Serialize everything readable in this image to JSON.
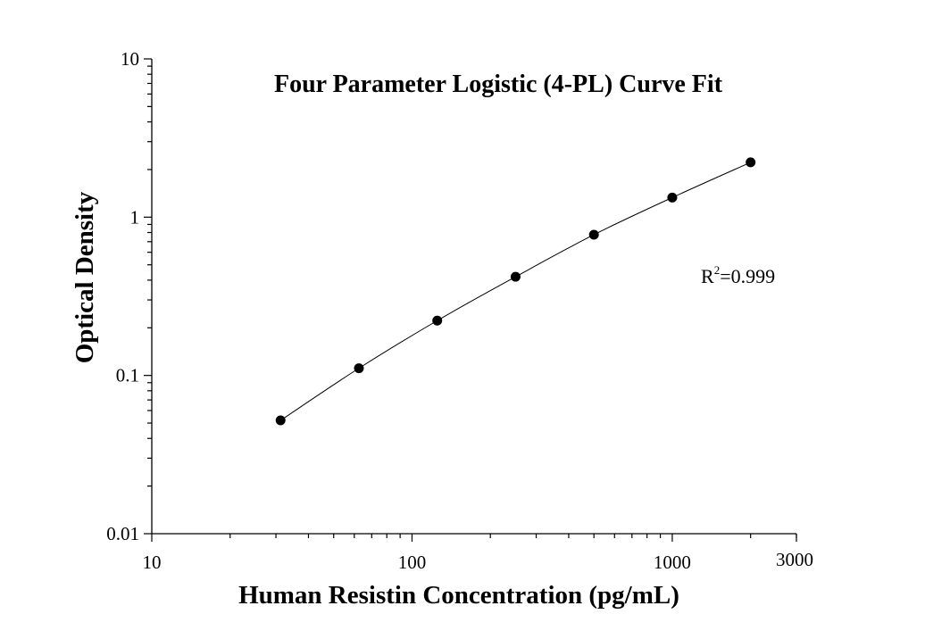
{
  "chart_data": {
    "type": "scatter",
    "title": "Four Parameter Logistic (4-PL) Curve Fit",
    "xlabel": "Human Resistin Concentration (pg/mL)",
    "ylabel": "Optical Density",
    "x_scale": "log",
    "y_scale": "log",
    "xlim": [
      10,
      3000
    ],
    "ylim": [
      0.01,
      10
    ],
    "x_ticks": [
      {
        "value": 10,
        "label": "10"
      },
      {
        "value": 100,
        "label": "100"
      },
      {
        "value": 1000,
        "label": "1000"
      },
      {
        "value": 3000,
        "label": "3000"
      }
    ],
    "y_ticks": [
      {
        "value": 0.01,
        "label": "0.01"
      },
      {
        "value": 0.1,
        "label": "0.1"
      },
      {
        "value": 1,
        "label": "1"
      },
      {
        "value": 10,
        "label": "10"
      }
    ],
    "series": [
      {
        "x": [
          31.25,
          62.5,
          125,
          250,
          500,
          1000,
          2000
        ],
        "y": [
          0.052,
          0.111,
          0.222,
          0.42,
          0.775,
          1.33,
          2.22
        ]
      }
    ],
    "fit_curve": true,
    "grid": false,
    "annotation": {
      "base": "R",
      "superscript": "2",
      "text": "=0.999"
    }
  }
}
